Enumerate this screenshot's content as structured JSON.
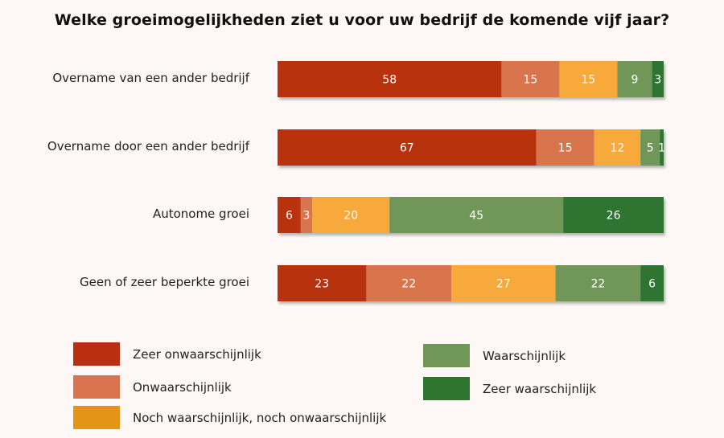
{
  "chart_data": {
    "type": "bar",
    "orientation": "horizontal",
    "stacked": true,
    "title": "Welke groeimogelijkheden ziet u voor uw bedrijf de komende vijf jaar?",
    "categories": [
      "Overname van een ander bedrijf",
      "Overname door een ander bedrijf",
      "Autonome groei",
      "Geen of zeer beperkte groei"
    ],
    "series": [
      {
        "name": "Zeer onwaarschijnlijk",
        "color": "#b8300f",
        "values": [
          58,
          67,
          6,
          23
        ]
      },
      {
        "name": "Onwaarschijnlijk",
        "color": "#d9744e",
        "values": [
          15,
          15,
          3,
          22
        ]
      },
      {
        "name": "Noch waarschijnlijk, noch onwaarschijnlijk",
        "color": "#f7a93a",
        "values": [
          15,
          12,
          20,
          27
        ]
      },
      {
        "name": "Waarschijnlijk",
        "color": "#719758",
        "values": [
          9,
          5,
          45,
          22
        ]
      },
      {
        "name": "Zeer waarschijnlijk",
        "color": "#2e7530",
        "values": [
          3,
          1,
          26,
          6
        ]
      }
    ],
    "xlim": [
      0,
      100
    ],
    "grid": false,
    "legend_position": "bottom",
    "legend_swatch_colors": [
      "#b8300f",
      "#d9744e",
      "#e49416",
      "#719758",
      "#2e7530"
    ]
  }
}
